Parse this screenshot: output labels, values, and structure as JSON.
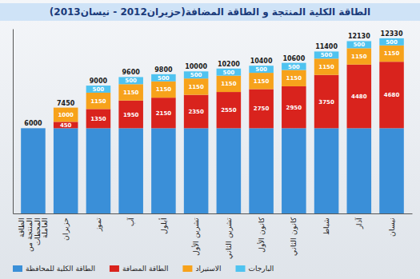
{
  "chart_data": {
    "type": "bar",
    "title": "الطاقة الكلية المنتجة و الطاقة المضافة(حزيران2012 - نيسان2013)",
    "stacked": true,
    "categories": [
      "الطاقة المنتجة من المحطات العاملة",
      "حزيران",
      "تموز",
      "آب",
      "أيلول",
      "تشرين الأول",
      "تشرين الثاني",
      "كانون الأول",
      "كانون الثاني",
      "شباط",
      "آذار",
      "نيسان"
    ],
    "series": [
      {
        "name": "الطاقة الكلية للمحافظة",
        "color": "#3a8fd8",
        "data_labels": false,
        "values": [
          6000,
          6000,
          6000,
          6000,
          6000,
          6000,
          6000,
          6000,
          6000,
          6000,
          6000,
          6000
        ]
      },
      {
        "name": "الطاقة المضافة",
        "color": "#d9231d",
        "data_labels": true,
        "values": [
          null,
          450,
          1350,
          1950,
          2150,
          2350,
          2550,
          2750,
          2950,
          3750,
          4480,
          4680
        ]
      },
      {
        "name": "الاستيراد",
        "color": "#f7a21b",
        "data_labels": true,
        "values": [
          null,
          1000,
          1150,
          1150,
          1150,
          1150,
          1150,
          1150,
          1150,
          1150,
          1150,
          1150
        ]
      },
      {
        "name": "البارجات",
        "color": "#4fc3f0",
        "data_labels": true,
        "values": [
          null,
          null,
          500,
          500,
          500,
          500,
          500,
          500,
          500,
          500,
          500,
          500
        ]
      }
    ],
    "totals": [
      6000,
      7450,
      9000,
      9600,
      9800,
      10000,
      10200,
      10400,
      10600,
      11400,
      12130,
      12330
    ],
    "ylim": [
      0,
      13000
    ],
    "tick_labels": "x",
    "legend": "bottom"
  }
}
